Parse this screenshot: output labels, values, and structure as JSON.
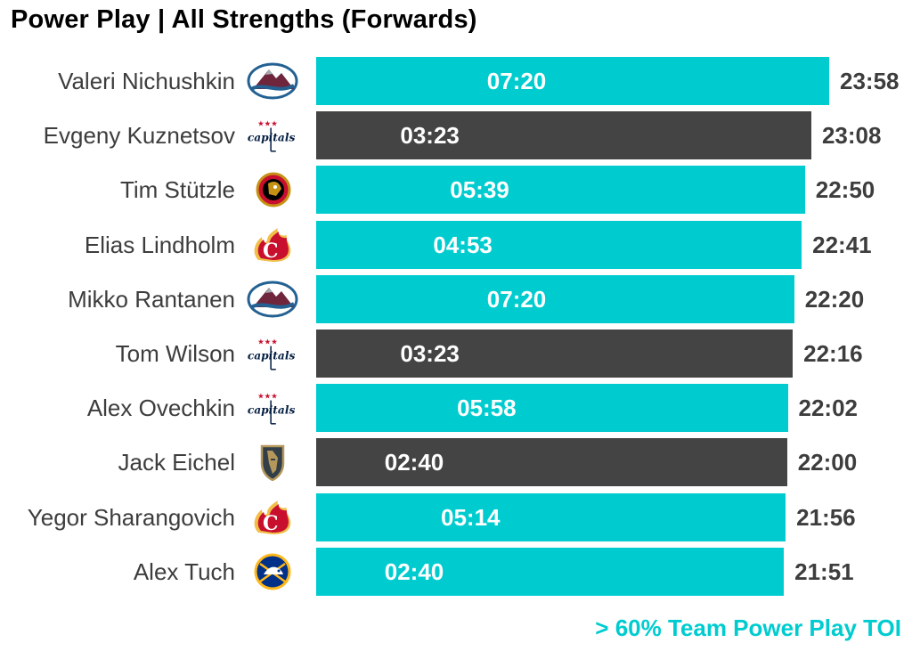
{
  "colors": {
    "highlight": "#00CCCF",
    "normal": "#444444"
  },
  "chart_data": {
    "type": "bar",
    "orientation": "horizontal",
    "title": "Power Play | All Strengths (Forwards)",
    "legend_note": "> 60% Team Power Play TOI",
    "value_unit": "minutes",
    "categories": [
      "Valeri Nichushkin",
      "Evgeny Kuznetsov",
      "Tim Stützle",
      "Elias Lindholm",
      "Mikko Rantanen",
      "Tom Wilson",
      "Alex Ovechkin",
      "Jack Eichel",
      "Yegor Sharangovich",
      "Alex Tuch"
    ],
    "teams": [
      "avalanche",
      "capitals",
      "senators",
      "flames",
      "avalanche",
      "capitals",
      "capitals",
      "golden-knights",
      "flames",
      "sabres"
    ],
    "values": [
      23.967,
      23.133,
      22.833,
      22.683,
      22.333,
      22.267,
      22.033,
      22.0,
      21.933,
      21.85
    ],
    "total_labels": [
      "23:58",
      "23:08",
      "22:50",
      "22:41",
      "22:20",
      "22:16",
      "22:02",
      "22:00",
      "21:56",
      "21:51"
    ],
    "pp_labels": [
      "07:20",
      "03:23",
      "05:39",
      "04:53",
      "07:20",
      "03:23",
      "05:58",
      "02:40",
      "05:14",
      "02:40"
    ],
    "highlighted": [
      true,
      false,
      true,
      true,
      true,
      false,
      true,
      false,
      true,
      true
    ]
  }
}
